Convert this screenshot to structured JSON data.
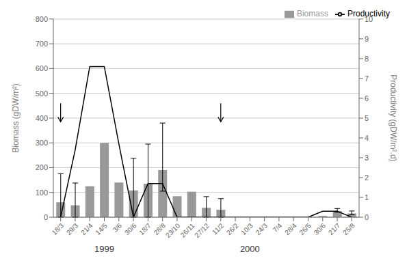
{
  "chart_data": {
    "type": "bar",
    "categories": [
      "18/3",
      "29/3",
      "21/4",
      "14/5",
      "3/6",
      "30/6",
      "18/7",
      "28/8",
      "23/10",
      "26/11",
      "27/12",
      "11/2",
      "26/2",
      "10/3",
      "24/3",
      "7/4",
      "28/4",
      "26/5",
      "30/6",
      "21/7",
      "25/8"
    ],
    "series": [
      {
        "name": "Biomass",
        "type": "bar",
        "color": "#999999",
        "values": [
          60,
          48,
          125,
          300,
          140,
          108,
          135,
          190,
          85,
          103,
          38,
          30,
          0,
          0,
          0,
          0,
          0,
          0,
          5,
          25,
          15
        ],
        "error_upper": [
          115,
          90,
          0,
          0,
          0,
          130,
          160,
          190,
          0,
          0,
          45,
          45,
          0,
          0,
          0,
          0,
          0,
          0,
          0,
          10,
          10
        ],
        "error_lower": [
          60,
          48,
          0,
          0,
          0,
          108,
          135,
          85,
          0,
          0,
          38,
          30,
          0,
          0,
          0,
          0,
          0,
          0,
          0,
          5,
          5
        ]
      },
      {
        "name": "Productivity",
        "type": "line",
        "color": "#000000",
        "axis": "y2",
        "values": [
          0.0,
          3.4,
          7.6,
          7.6,
          3.7,
          0.0,
          1.7,
          1.7,
          0.0,
          0.0,
          0.0,
          0.0,
          0.0,
          0.0,
          0.0,
          0.0,
          0.0,
          0.0,
          0.3,
          0.3,
          0.0
        ]
      }
    ],
    "ylabel": "Biomass (gDW/m²)",
    "y2label": "Productivity (gDW/m².d)",
    "ylim": [
      0,
      800
    ],
    "yticks": [
      0,
      100,
      200,
      300,
      400,
      500,
      600,
      700,
      800
    ],
    "y2lim": [
      0,
      10
    ],
    "y2ticks": [
      0,
      1,
      2,
      3,
      4,
      5,
      6,
      7,
      8,
      9,
      10
    ],
    "grid": true,
    "legend": "upper right",
    "annotations": [
      {
        "text": "1999",
        "x": "14/5"
      },
      {
        "text": "2000",
        "x": "10/3"
      }
    ],
    "arrows": [
      {
        "x": "18/3",
        "y_start": 460,
        "y_end": 385
      },
      {
        "x": "11/2",
        "y_start": 460,
        "y_end": 385
      }
    ]
  }
}
